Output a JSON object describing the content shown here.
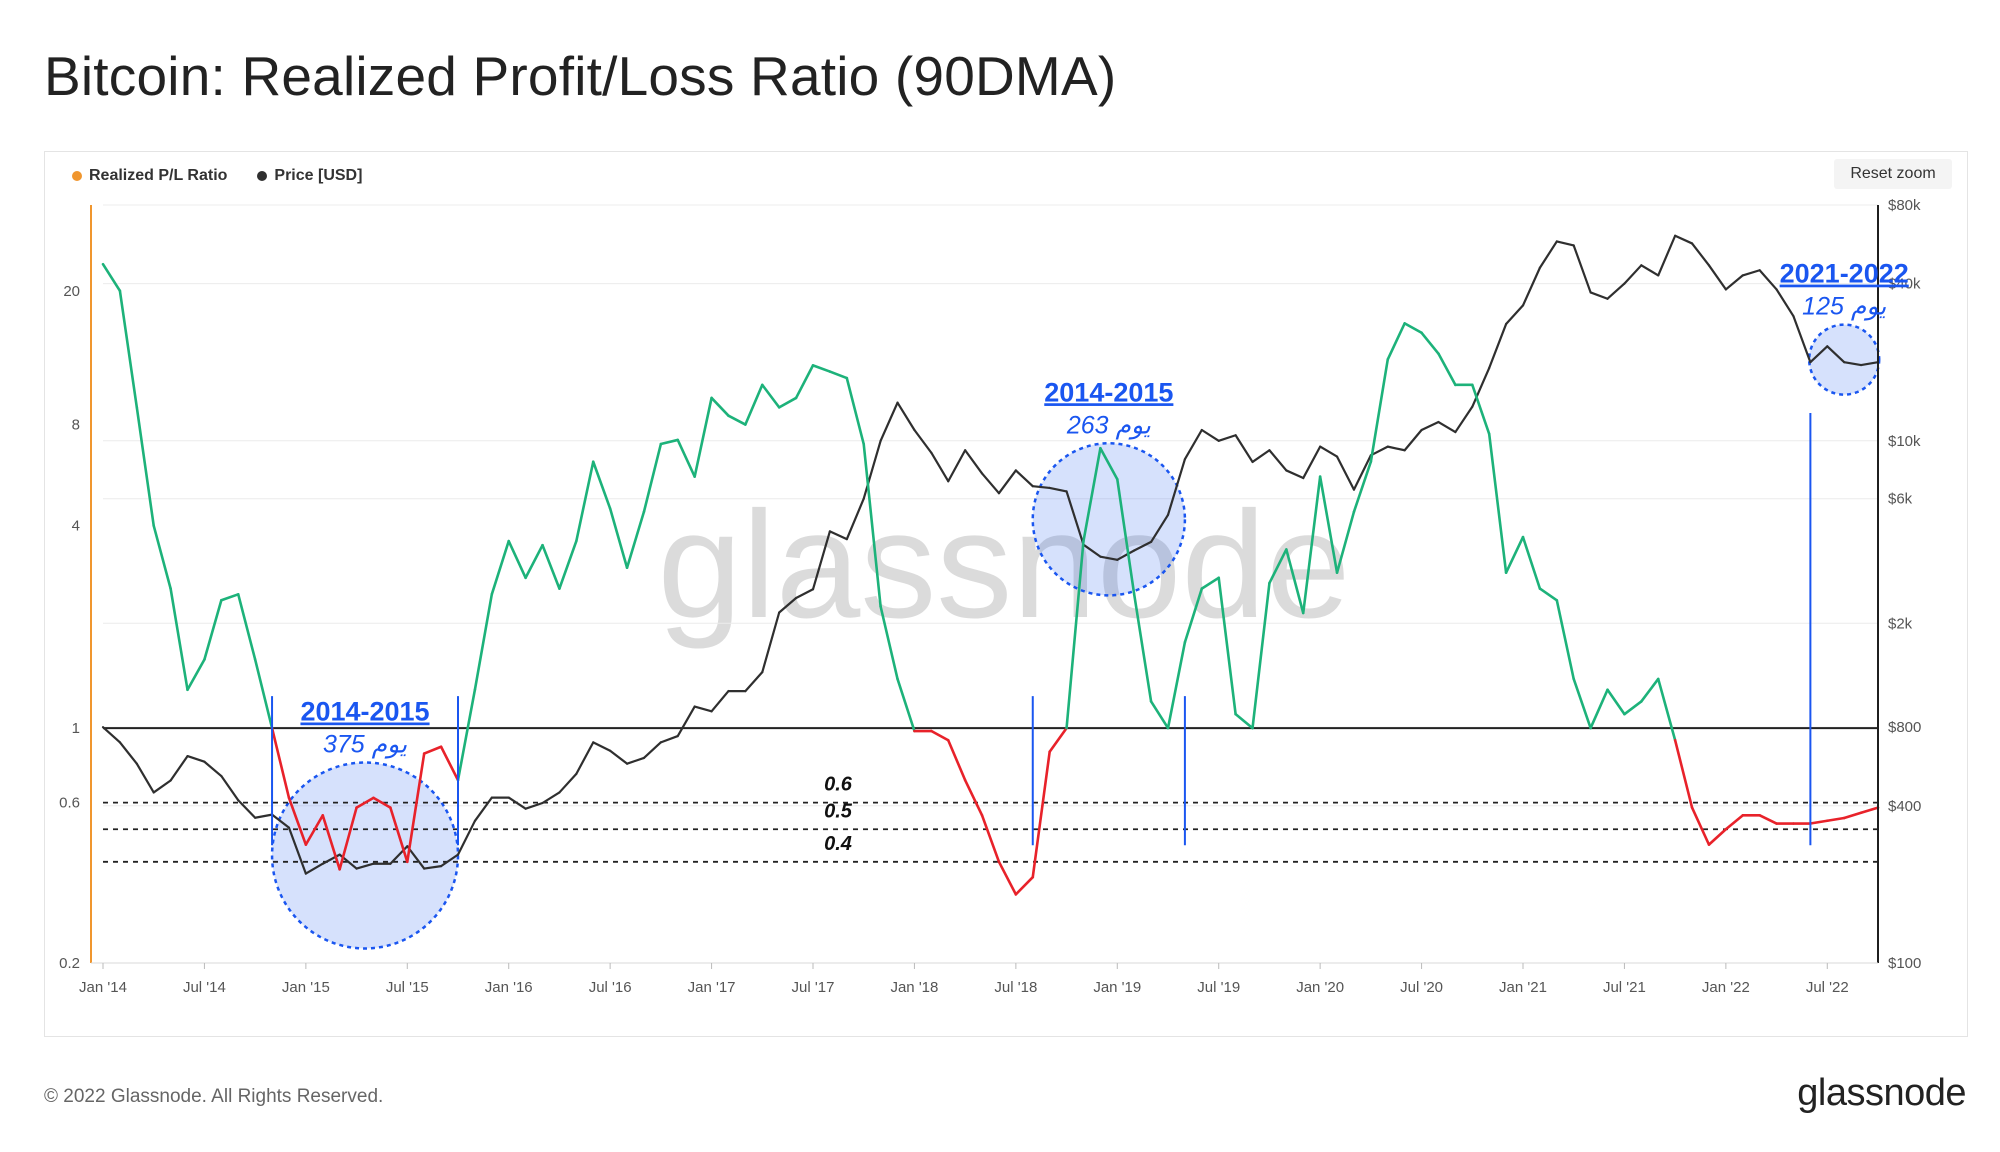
{
  "title": "Bitcoin: Realized Profit/Loss Ratio (90DMA)",
  "legend": {
    "ratio_label": "Realized P/L Ratio",
    "ratio_color": "#f0962e",
    "price_label": "Price [USD]",
    "price_color": "#2f2f2f"
  },
  "reset_zoom_label": "Reset zoom",
  "watermark": "glassnode",
  "footer": "© 2022 Glassnode. All Rights Reserved.",
  "brand": "glassnode",
  "chart_data": {
    "type": "line",
    "x_ticks": [
      "Jan '14",
      "Jul '14",
      "Jan '15",
      "Jul '15",
      "Jan '16",
      "Jul '16",
      "Jan '17",
      "Jul '17",
      "Jan '18",
      "Jul '18",
      "Jan '19",
      "Jul '19",
      "Jan '20",
      "Jul '20",
      "Jan '21",
      "Jul '21",
      "Jan '22",
      "Jul '22"
    ],
    "x_range": [
      "2014-01",
      "2022-10"
    ],
    "left_axis": {
      "scale": "log",
      "ticks": [
        "20",
        "8",
        "4",
        "1",
        "0.6",
        "0.2"
      ],
      "range": [
        0.2,
        36
      ]
    },
    "right_axis": {
      "scale": "log",
      "ticks": [
        "$80k",
        "$40k",
        "$10k",
        "$6k",
        "$2k",
        "$800",
        "$400",
        "$100"
      ],
      "range": [
        100,
        80000
      ]
    },
    "colors": {
      "profit": "#1db27a",
      "loss": "#e8222a",
      "price": "#2f2f2f",
      "annotation": "#1a56f0"
    },
    "series": [
      {
        "name": "Realized P/L Ratio",
        "x": [
          "2014-01",
          "2014-02",
          "2014-03",
          "2014-04",
          "2014-05",
          "2014-06",
          "2014-07",
          "2014-08",
          "2014-09",
          "2014-10",
          "2014-11",
          "2014-12",
          "2015-01",
          "2015-02",
          "2015-03",
          "2015-04",
          "2015-05",
          "2015-06",
          "2015-07",
          "2015-08",
          "2015-09",
          "2015-10",
          "2015-11",
          "2015-12",
          "2016-01",
          "2016-02",
          "2016-03",
          "2016-04",
          "2016-05",
          "2016-06",
          "2016-07",
          "2016-08",
          "2016-09",
          "2016-10",
          "2016-11",
          "2016-12",
          "2017-01",
          "2017-02",
          "2017-03",
          "2017-04",
          "2017-05",
          "2017-06",
          "2017-07",
          "2017-08",
          "2017-09",
          "2017-10",
          "2017-11",
          "2017-12",
          "2018-01",
          "2018-02",
          "2018-03",
          "2018-04",
          "2018-05",
          "2018-06",
          "2018-07",
          "2018-08",
          "2018-09",
          "2018-10",
          "2018-11",
          "2018-12",
          "2019-01",
          "2019-02",
          "2019-03",
          "2019-04",
          "2019-05",
          "2019-06",
          "2019-07",
          "2019-08",
          "2019-09",
          "2019-10",
          "2019-11",
          "2019-12",
          "2020-01",
          "2020-02",
          "2020-03",
          "2020-04",
          "2020-05",
          "2020-06",
          "2020-07",
          "2020-08",
          "2020-09",
          "2020-10",
          "2020-11",
          "2020-12",
          "2021-01",
          "2021-02",
          "2021-03",
          "2021-04",
          "2021-05",
          "2021-06",
          "2021-07",
          "2021-08",
          "2021-09",
          "2021-10",
          "2021-11",
          "2021-12",
          "2022-01",
          "2022-02",
          "2022-03",
          "2022-04",
          "2022-05",
          "2022-06",
          "2022-07",
          "2022-08",
          "2022-09",
          "2022-10"
        ],
        "values": [
          24,
          20,
          9,
          4,
          2.6,
          1.3,
          1.6,
          2.4,
          2.5,
          1.6,
          1.0,
          0.62,
          0.45,
          0.55,
          0.38,
          0.58,
          0.62,
          0.58,
          0.4,
          0.84,
          0.88,
          0.7,
          1.3,
          2.5,
          3.6,
          2.8,
          3.5,
          2.6,
          3.6,
          6.2,
          4.5,
          3.0,
          4.4,
          7.0,
          7.2,
          5.6,
          9.6,
          8.5,
          8.0,
          10.5,
          9.0,
          9.6,
          12.0,
          11.5,
          11.0,
          7.0,
          2.3,
          1.4,
          0.98,
          0.98,
          0.92,
          0.7,
          0.55,
          0.4,
          0.32,
          0.36,
          0.85,
          1.0,
          3.6,
          6.8,
          5.5,
          2.5,
          1.2,
          1.0,
          1.8,
          2.6,
          2.8,
          1.1,
          1.0,
          2.7,
          3.4,
          2.2,
          5.6,
          2.9,
          4.4,
          6.2,
          12.5,
          16.0,
          15.0,
          13.0,
          10.5,
          10.5,
          7.5,
          2.9,
          3.7,
          2.6,
          2.4,
          1.4,
          1.0,
          1.3,
          1.1,
          1.2,
          1.4,
          0.92,
          0.58,
          0.45,
          0.5,
          0.55,
          0.55,
          0.52,
          0.52,
          0.52,
          0.53,
          0.54,
          0.56,
          0.58
        ]
      },
      {
        "name": "Price [USD]",
        "x": [
          "2014-01",
          "2014-02",
          "2014-03",
          "2014-04",
          "2014-05",
          "2014-06",
          "2014-07",
          "2014-08",
          "2014-09",
          "2014-10",
          "2014-11",
          "2014-12",
          "2015-01",
          "2015-02",
          "2015-03",
          "2015-04",
          "2015-05",
          "2015-06",
          "2015-07",
          "2015-08",
          "2015-09",
          "2015-10",
          "2015-11",
          "2015-12",
          "2016-01",
          "2016-02",
          "2016-03",
          "2016-04",
          "2016-05",
          "2016-06",
          "2016-07",
          "2016-08",
          "2016-09",
          "2016-10",
          "2016-11",
          "2016-12",
          "2017-01",
          "2017-02",
          "2017-03",
          "2017-04",
          "2017-05",
          "2017-06",
          "2017-07",
          "2017-08",
          "2017-09",
          "2017-10",
          "2017-11",
          "2017-12",
          "2018-01",
          "2018-02",
          "2018-03",
          "2018-04",
          "2018-05",
          "2018-06",
          "2018-07",
          "2018-08",
          "2018-09",
          "2018-10",
          "2018-11",
          "2018-12",
          "2019-01",
          "2019-02",
          "2019-03",
          "2019-04",
          "2019-05",
          "2019-06",
          "2019-07",
          "2019-08",
          "2019-09",
          "2019-10",
          "2019-11",
          "2019-12",
          "2020-01",
          "2020-02",
          "2020-03",
          "2020-04",
          "2020-05",
          "2020-06",
          "2020-07",
          "2020-08",
          "2020-09",
          "2020-10",
          "2020-11",
          "2020-12",
          "2021-01",
          "2021-02",
          "2021-03",
          "2021-04",
          "2021-05",
          "2021-06",
          "2021-07",
          "2021-08",
          "2021-09",
          "2021-10",
          "2021-11",
          "2021-12",
          "2022-01",
          "2022-02",
          "2022-03",
          "2022-04",
          "2022-05",
          "2022-06",
          "2022-07",
          "2022-08",
          "2022-09",
          "2022-10"
        ],
        "values": [
          800,
          700,
          580,
          450,
          500,
          620,
          590,
          520,
          420,
          360,
          370,
          330,
          220,
          240,
          260,
          230,
          240,
          240,
          280,
          230,
          235,
          260,
          350,
          430,
          430,
          390,
          410,
          450,
          530,
          700,
          650,
          580,
          610,
          700,
          740,
          960,
          920,
          1100,
          1100,
          1300,
          2200,
          2500,
          2700,
          4500,
          4200,
          6000,
          10000,
          14000,
          11000,
          9000,
          7000,
          9200,
          7500,
          6300,
          7700,
          6700,
          6600,
          6400,
          4000,
          3600,
          3500,
          3800,
          4100,
          5200,
          8500,
          11000,
          10000,
          10500,
          8300,
          9200,
          7700,
          7200,
          9500,
          8700,
          6500,
          8800,
          9500,
          9200,
          11000,
          11800,
          10800,
          13500,
          19000,
          28000,
          33000,
          46000,
          58000,
          56000,
          37000,
          35000,
          40000,
          47000,
          43000,
          61000,
          57000,
          47000,
          38000,
          43000,
          45000,
          38000,
          30000,
          20000,
          23000,
          20000,
          19500,
          20000
        ]
      }
    ],
    "threshold_lines": [
      {
        "value": 1,
        "style": "solid",
        "label": ""
      },
      {
        "value": 0.6,
        "style": "dashed",
        "label": "0.6"
      },
      {
        "value": 0.5,
        "style": "dashed",
        "label": "0.5"
      },
      {
        "value": 0.4,
        "style": "dashed",
        "label": "0.4"
      }
    ],
    "annotations": [
      {
        "title": "2014-2015",
        "days_text": "375 يوم",
        "start": "2014-11",
        "end": "2015-10"
      },
      {
        "title": "2014-2015",
        "days_text": "263 يوم",
        "start": "2018-08",
        "end": "2019-05"
      },
      {
        "title": "2021-2022",
        "days_text": "125 يوم",
        "start": "2022-06",
        "end": "2022-10"
      }
    ]
  }
}
